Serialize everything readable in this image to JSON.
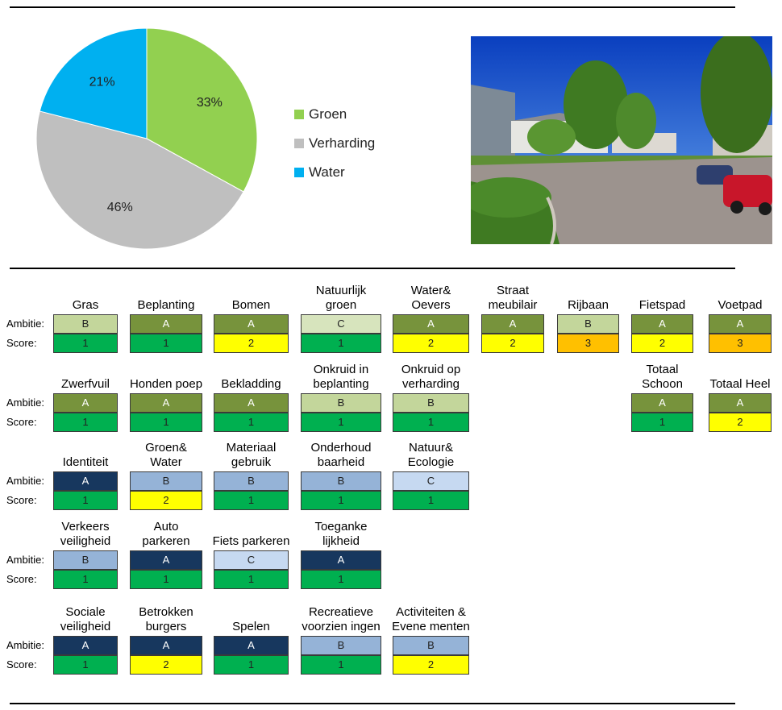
{
  "pie": {
    "chart_data": {
      "type": "pie",
      "slices": [
        {
          "name": "Groen",
          "value": 33,
          "label": "33%",
          "color": "#92d050"
        },
        {
          "name": "Verharding",
          "value": 46,
          "label": "46%",
          "color": "#bfbfbf"
        },
        {
          "name": "Water",
          "value": 21,
          "label": "21%",
          "color": "#00b0f0"
        }
      ],
      "legend_position": "right"
    }
  },
  "legend": [
    {
      "label": "Groen",
      "color": "#92d050"
    },
    {
      "label": "Verharding",
      "color": "#bfbfbf"
    },
    {
      "label": "Water",
      "color": "#00b0f0"
    }
  ],
  "labels": {
    "ambitie": "Ambitie:",
    "score": "Score:"
  },
  "grid": [
    [
      {
        "title": "Gras",
        "ambitie": "B",
        "score": "1",
        "theme": "green"
      },
      {
        "title": "Beplanting",
        "ambitie": "A",
        "score": "1",
        "theme": "green"
      },
      {
        "title": "Bomen",
        "ambitie": "A",
        "score": "2",
        "theme": "green"
      },
      {
        "title": "Natuurlijk groen",
        "ambitie": "C",
        "score": "1",
        "theme": "green"
      },
      {
        "title": "Water& Oevers",
        "ambitie": "A",
        "score": "2",
        "theme": "green"
      },
      {
        "title": "Straat meubilair",
        "ambitie": "A",
        "score": "2",
        "theme": "green"
      },
      {
        "title": "Rijbaan",
        "ambitie": "B",
        "score": "3",
        "theme": "green"
      },
      {
        "title": "Fietspad",
        "ambitie": "A",
        "score": "2",
        "theme": "green"
      },
      {
        "title": "Voetpad",
        "ambitie": "A",
        "score": "3",
        "theme": "green"
      }
    ],
    [
      {
        "title": "Zwerfvuil",
        "ambitie": "A",
        "score": "1",
        "theme": "green"
      },
      {
        "title": "Honden poep",
        "ambitie": "A",
        "score": "1",
        "theme": "green"
      },
      {
        "title": "Bekladding",
        "ambitie": "A",
        "score": "1",
        "theme": "green"
      },
      {
        "title": "Onkruid in beplanting",
        "ambitie": "B",
        "score": "1",
        "theme": "green"
      },
      {
        "title": "Onkruid op verharding",
        "ambitie": "B",
        "score": "1",
        "theme": "green"
      },
      null,
      null,
      {
        "title": "Totaal Schoon",
        "ambitie": "A",
        "score": "1",
        "theme": "green"
      },
      {
        "title": "Totaal Heel",
        "ambitie": "A",
        "score": "2",
        "theme": "green"
      }
    ],
    [
      {
        "title": "Identiteit",
        "ambitie": "A",
        "score": "1",
        "theme": "blue"
      },
      {
        "title": "Groen& Water",
        "ambitie": "B",
        "score": "2",
        "theme": "blue"
      },
      {
        "title": "Materiaal gebruik",
        "ambitie": "B",
        "score": "1",
        "theme": "blue"
      },
      {
        "title": "Onderhoud baarheid",
        "ambitie": "B",
        "score": "1",
        "theme": "blue"
      },
      {
        "title": "Natuur& Ecologie",
        "ambitie": "C",
        "score": "1",
        "theme": "blue"
      }
    ],
    [
      {
        "title": "Verkeers veiligheid",
        "ambitie": "B",
        "score": "1",
        "theme": "blue"
      },
      {
        "title": "Auto parkeren",
        "ambitie": "A",
        "score": "1",
        "theme": "blue"
      },
      {
        "title": "Fiets parkeren",
        "ambitie": "C",
        "score": "1",
        "theme": "blue"
      },
      {
        "title": "Toeganke lijkheid",
        "ambitie": "A",
        "score": "1",
        "theme": "blue"
      }
    ],
    [
      {
        "title": "Sociale veiligheid",
        "ambitie": "A",
        "score": "1",
        "theme": "blue"
      },
      {
        "title": "Betrokken burgers",
        "ambitie": "A",
        "score": "2",
        "theme": "blue"
      },
      {
        "title": "Spelen",
        "ambitie": "A",
        "score": "1",
        "theme": "blue"
      },
      {
        "title": "Recreatieve voorzien ingen",
        "ambitie": "B",
        "score": "1",
        "theme": "blue"
      },
      {
        "title": "Activiteiten & Evene menten",
        "ambitie": "B",
        "score": "2",
        "theme": "blue"
      }
    ]
  ],
  "colors": {
    "green": {
      "A": "#77933c",
      "B": "#c3d69b",
      "C": "#d7e4bd"
    },
    "blue": {
      "A": "#17375e",
      "B": "#95b3d7",
      "C": "#c6d9f1"
    },
    "score": {
      "1": "#00b050",
      "2": "#ffff00",
      "3": "#ffc000"
    }
  }
}
